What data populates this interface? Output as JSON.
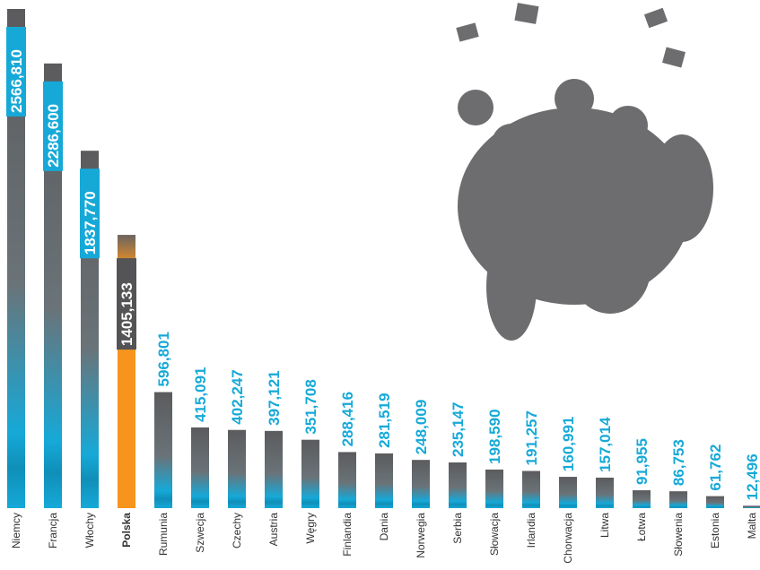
{
  "chart_data": {
    "type": "bar",
    "categories": [
      "Niemcy",
      "Francja",
      "Włochy",
      "Polska",
      "Rumunia",
      "Szwecja",
      "Czechy",
      "Austria",
      "Węgry",
      "Finlandia",
      "Dania",
      "Norwegia",
      "Serbia",
      "Słowacja",
      "Irlandia",
      "Chorwacja",
      "Litwa",
      "Łotwa",
      "Słowenia",
      "Estonia",
      "Malta"
    ],
    "values": [
      2566810,
      2286600,
      1837770,
      1405133,
      596801,
      415091,
      402247,
      397121,
      351708,
      288416,
      281519,
      248009,
      235147,
      198590,
      191257,
      160991,
      157014,
      91955,
      86753,
      61762,
      12496
    ],
    "value_labels": [
      "2566,810",
      "2286,600",
      "1837,770",
      "1405,133",
      "596,801",
      "415,091",
      "402,247",
      "397,121",
      "351,708",
      "288,416",
      "281,519",
      "248,009",
      "235,147",
      "198,590",
      "191,257",
      "160,991",
      "157,014",
      "91,955",
      "86,753",
      "61,762",
      "12,496"
    ],
    "color": "#16a9d8",
    "top_color": "#5b5b5d",
    "highlight": "Polska",
    "highlight_color": "#f7941d"
  }
}
